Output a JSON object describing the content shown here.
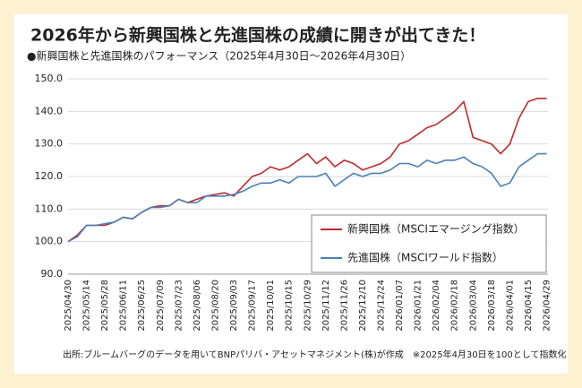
{
  "chart_data": {
    "type": "line",
    "title": "2026年から新興国株と先進国株の成績に開きが出てきた！",
    "subtitle": "●新興国株と先進国株のパフォーマンス（2025年4月30日～2026年4月30日）",
    "footnote": "出所:ブルームバーグのデータを用いてBNPパリバ・アセットマネジメント(株)が作成　※2025年4月30日を100として指数化",
    "x": [
      "2025/04/30",
      "2025/05/07",
      "2025/05/14",
      "2025/05/21",
      "2025/05/28",
      "2025/06/04",
      "2025/06/11",
      "2025/06/18",
      "2025/06/25",
      "2025/07/02",
      "2025/07/09",
      "2025/07/16",
      "2025/07/23",
      "2025/07/30",
      "2025/08/06",
      "2025/08/13",
      "2025/08/20",
      "2025/08/27",
      "2025/09/03",
      "2025/09/10",
      "2025/09/17",
      "2025/09/24",
      "2025/10/01",
      "2025/10/08",
      "2025/10/15",
      "2025/10/22",
      "2025/10/29",
      "2025/11/05",
      "2025/11/12",
      "2025/11/19",
      "2025/11/26",
      "2025/12/03",
      "2025/12/10",
      "2025/12/17",
      "2025/12/24",
      "2025/12/31",
      "2026/01/07",
      "2026/01/14",
      "2026/01/21",
      "2026/01/28",
      "2026/02/04",
      "2026/02/11",
      "2026/02/18",
      "2026/02/25",
      "2026/03/04",
      "2026/03/11",
      "2026/03/18",
      "2026/03/25",
      "2026/04/01",
      "2026/04/08",
      "2026/04/15",
      "2026/04/22",
      "2026/04/29"
    ],
    "series": [
      {
        "name": "新興国株（MSCIエマージング指数）",
        "color": "#c0282d",
        "values": [
          100,
          102,
          105,
          105,
          105,
          106,
          107.5,
          107,
          109,
          110.5,
          111,
          111,
          113,
          112,
          113,
          114,
          114.5,
          115,
          114,
          117,
          120,
          121,
          123,
          122,
          123,
          125,
          127,
          124,
          126,
          123,
          125,
          124,
          122,
          123,
          124,
          126,
          130,
          131,
          133,
          135,
          136,
          138,
          140,
          143,
          132,
          131,
          130,
          127,
          130,
          138,
          143,
          144,
          144
        ]
      },
      {
        "name": "先進国株（MSCIワールド指数）",
        "color": "#4a7fb5",
        "values": [
          100,
          101.5,
          105,
          105,
          105.5,
          106,
          107.5,
          107,
          109,
          110.5,
          110.5,
          111,
          113,
          112,
          112,
          114,
          114,
          114,
          114.5,
          115.5,
          117,
          118,
          118,
          119,
          118,
          120,
          120,
          120,
          121,
          117,
          119,
          121,
          120,
          121,
          121,
          122,
          124,
          124,
          123,
          125,
          124,
          125,
          125,
          126,
          124,
          123,
          121,
          117,
          118,
          123,
          125,
          127,
          127
        ]
      }
    ],
    "xlim": [
      "2025/04/30",
      "2026/04/30"
    ],
    "xticks": [
      "2025/04/30",
      "2025/05/14",
      "2025/05/28",
      "2025/06/11",
      "2025/06/25",
      "2025/07/09",
      "2025/07/23",
      "2025/08/06",
      "2025/08/20",
      "2025/09/03",
      "2025/09/17",
      "2025/10/01",
      "2025/10/15",
      "2025/10/29",
      "2025/11/12",
      "2025/11/26",
      "2025/12/10",
      "2025/12/24",
      "2026/01/07",
      "2026/01/21",
      "2026/02/04",
      "2026/02/18",
      "2026/03/04",
      "2026/03/18",
      "2026/04/01",
      "2026/04/15",
      "2026/04/29"
    ],
    "ylim": [
      90,
      150
    ],
    "yticks": [
      {
        "value": 90,
        "label": "90.0"
      },
      {
        "value": 100,
        "label": "100.0"
      },
      {
        "value": 110,
        "label": "110.0"
      },
      {
        "value": 120,
        "label": "120.0"
      },
      {
        "value": 130,
        "label": "130.0"
      },
      {
        "value": 140,
        "label": "140.0"
      },
      {
        "value": 150,
        "label": "150.0"
      }
    ],
    "grid": true,
    "legend": "lower right"
  }
}
